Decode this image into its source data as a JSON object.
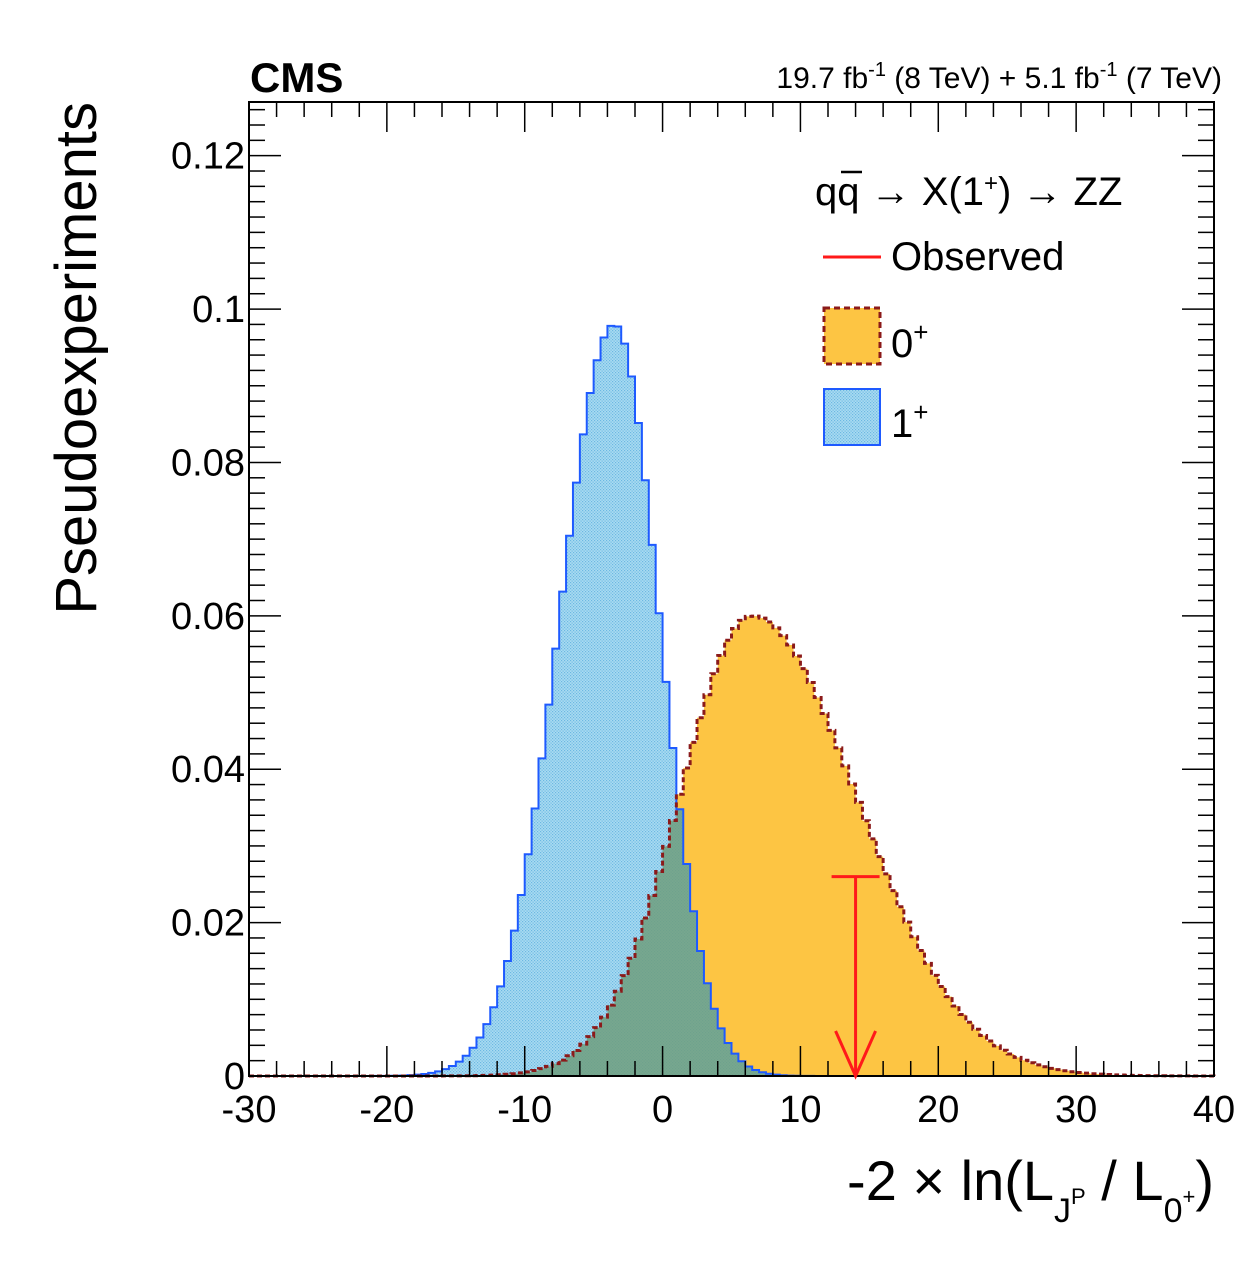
{
  "header": {
    "experiment": "CMS",
    "luminosity": {
      "lumi1": "19.7 fb",
      "exp1": "-1",
      "energy1": " (8 TeV) + 5.1 fb",
      "exp2": "-1",
      "energy2": " (7 TeV)"
    }
  },
  "axes": {
    "ylabel": "Pseudoexperiments",
    "xlabel": {
      "main": "-2 × ln(L",
      "sub1": "J",
      "sub1sup": "P",
      "mid": " / L",
      "sub2": "0",
      "sub2sup": "+",
      "close": ")"
    }
  },
  "legend": {
    "process": {
      "part1": "q",
      "part2": "q",
      "part3": " → X(1",
      "sup": "+",
      "part4": ") → ZZ"
    },
    "observed": "Observed",
    "hyp0": {
      "main": "0",
      "sup": "+"
    },
    "hyp1": {
      "main": "1",
      "sup": "+"
    }
  },
  "colors": {
    "hyp0_fill": "#fdc543",
    "hyp0_line": "#8b1a1a",
    "hyp1_fill": "#9fd4ee",
    "hyp1_line": "#1e5aff",
    "observed": "#ff1a1a",
    "overlap_fill": "#6e9e7e"
  },
  "chart_data": {
    "type": "histogram",
    "xlim": [
      -30,
      40
    ],
    "ylim": [
      0,
      0.127
    ],
    "xticks": [
      -30,
      -20,
      -10,
      0,
      10,
      20,
      30,
      40
    ],
    "yticks": [
      0,
      0.02,
      0.04,
      0.06,
      0.08,
      0.1,
      0.12
    ],
    "ytick_labels": [
      "0",
      "0.02",
      "0.04",
      "0.06",
      "0.08",
      "0.1",
      "0.12"
    ],
    "bin_width": 0.5,
    "series": [
      {
        "name": "0+",
        "shape": "skewed peak",
        "peak_x": 6.5,
        "peak_y": 0.06,
        "sigma_left": 5.3,
        "sigma_right": 7.6
      },
      {
        "name": "1+",
        "shape": "skewed peak",
        "peak_x": -3.5,
        "peak_y": 0.098,
        "sigma_left": 4.0,
        "sigma_right": 3.3
      }
    ],
    "observed": {
      "x": 14.0,
      "arrow_top": 0.026
    }
  }
}
